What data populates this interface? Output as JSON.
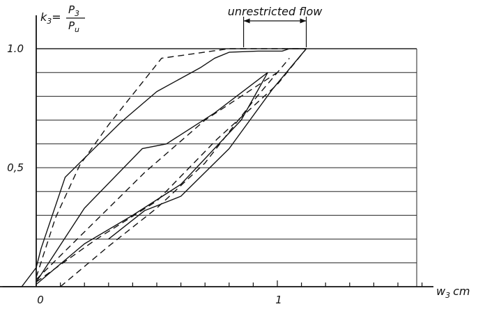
{
  "chart_data": {
    "type": "line",
    "ylabel": {
      "prefix": "k",
      "prefix_sub": "3",
      "eq": "=",
      "numerator": "P",
      "numerator_sub": "3",
      "denominator": "P",
      "denominator_sub": "u"
    },
    "xlabel": {
      "main": "w",
      "sub": "3",
      "unit": "cm"
    },
    "x_ticks": [
      {
        "value": 0,
        "label": "0"
      },
      {
        "value": 1,
        "label": "1"
      }
    ],
    "y_ticks": [
      {
        "value": 0.5,
        "label": "0,5"
      },
      {
        "value": 1.0,
        "label": "1.0"
      }
    ],
    "xlim": [
      -0.15,
      1.6
    ],
    "ylim": [
      0,
      1.05
    ],
    "grid": true,
    "grid_y_step": 0.1,
    "x_minor_step": 0.1,
    "annotation": {
      "text": "unrestricted flow",
      "x_start": 0.86,
      "x_end": 1.12
    },
    "series": [
      {
        "style": "solid",
        "points": [
          [
            -0.14,
            0
          ],
          [
            -0.06,
            0
          ],
          [
            0,
            0.08
          ],
          [
            0.02,
            0.16
          ],
          [
            0.12,
            0.46
          ],
          [
            0.2,
            0.54
          ],
          [
            0.35,
            0.69
          ],
          [
            0.5,
            0.82
          ],
          [
            0.68,
            0.92
          ],
          [
            0.74,
            0.96
          ],
          [
            0.8,
            0.985
          ],
          [
            0.92,
            0.99
          ],
          [
            1.02,
            0.99
          ],
          [
            1.05,
            1.0
          ],
          [
            1.12,
            1.0
          ]
        ]
      },
      {
        "style": "dashed",
        "points": [
          [
            0,
            0.04
          ],
          [
            0.08,
            0.29
          ],
          [
            0.18,
            0.51
          ],
          [
            0.3,
            0.68
          ],
          [
            0.52,
            0.96
          ],
          [
            0.8,
            1.0
          ],
          [
            1.12,
            1.0
          ]
        ]
      },
      {
        "style": "solid",
        "points": [
          [
            0,
            0.02
          ],
          [
            0.2,
            0.33
          ],
          [
            0.44,
            0.58
          ],
          [
            0.54,
            0.6
          ],
          [
            0.74,
            0.73
          ],
          [
            0.96,
            0.9
          ]
        ]
      },
      {
        "style": "dashed",
        "points": [
          [
            0,
            0.03
          ],
          [
            0.2,
            0.23
          ],
          [
            0.45,
            0.48
          ],
          [
            0.7,
            0.7
          ],
          [
            1.0,
            0.9
          ]
        ]
      },
      {
        "style": "solid",
        "points": [
          [
            0,
            0.01
          ],
          [
            0.2,
            0.18
          ],
          [
            0.4,
            0.3
          ],
          [
            0.6,
            0.43
          ],
          [
            0.85,
            0.7
          ],
          [
            0.96,
            0.9
          ]
        ]
      },
      {
        "style": "dashed",
        "points": [
          [
            0,
            0.02
          ],
          [
            0.25,
            0.2
          ],
          [
            0.5,
            0.36
          ],
          [
            0.75,
            0.62
          ],
          [
            1.0,
            0.85
          ],
          [
            1.12,
            1.0
          ]
        ]
      },
      {
        "style": "dashed",
        "points": [
          [
            0.1,
            0
          ],
          [
            0.3,
            0.17
          ],
          [
            0.5,
            0.33
          ],
          [
            0.7,
            0.52
          ],
          [
            0.9,
            0.78
          ],
          [
            1.05,
            0.96
          ]
        ]
      },
      {
        "style": "solid",
        "points": [
          [
            0.3,
            0.2
          ],
          [
            0.45,
            0.32
          ],
          [
            0.6,
            0.38
          ],
          [
            0.8,
            0.58
          ],
          [
            0.98,
            0.83
          ],
          [
            1.12,
            1.0
          ]
        ]
      }
    ]
  }
}
